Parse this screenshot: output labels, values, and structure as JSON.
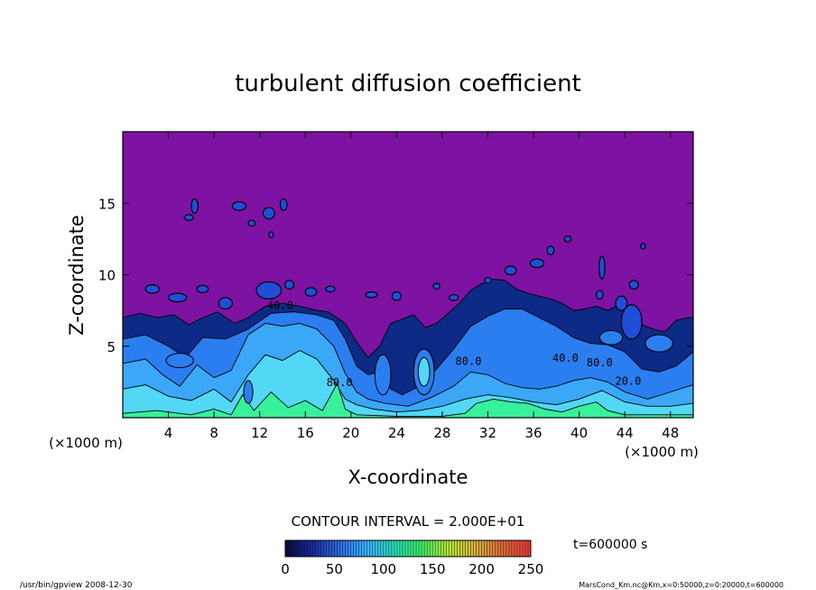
{
  "chart_data": {
    "type": "heatmap",
    "title": "turbulent diffusion coefficient",
    "xlabel": "X-coordinate",
    "ylabel": "Z-coordinate",
    "x_unit": "(×1000 m)",
    "y_unit": "(×1000 m)",
    "xlim": [
      0,
      50
    ],
    "ylim": [
      0,
      20
    ],
    "x_ticks": [
      4,
      8,
      12,
      16,
      20,
      24,
      28,
      32,
      36,
      40,
      44,
      48
    ],
    "y_ticks": [
      5,
      10,
      15
    ],
    "contour_interval": "CONTOUR INTERVAL = 2.000E+01",
    "time_label": "t=600000 s",
    "contour_labels": [
      {
        "x": 13.8,
        "z": 7.6,
        "text": "40.0"
      },
      {
        "x": 19.0,
        "z": 2.2,
        "text": "80.0"
      },
      {
        "x": 30.3,
        "z": 3.7,
        "text": "80.0"
      },
      {
        "x": 38.8,
        "z": 3.9,
        "text": "40.0"
      },
      {
        "x": 41.8,
        "z": 3.6,
        "text": "80.0"
      },
      {
        "x": 44.3,
        "z": 2.3,
        "text": "20.0"
      }
    ],
    "colorbar": {
      "min": 0,
      "max": 250,
      "ticks": [
        "0",
        "50",
        "100",
        "150",
        "200",
        "250"
      ],
      "colors": [
        "#0a0a3c",
        "#1e2aa0",
        "#2f6ee6",
        "#3ab4ff",
        "#2adfb8",
        "#3ff06a",
        "#b8e83a",
        "#d8b040",
        "#e06a3a",
        "#ee3a3a"
      ]
    },
    "background_color": "#7e12a2",
    "fill_colors": {
      "navy": "#0d2a86",
      "blue": "#1f4ed8",
      "mid": "#2a7ef0",
      "light": "#3aa8f6",
      "cyan": "#52d8f4",
      "green": "#36f09a"
    },
    "field_regions": [
      {
        "level": "navy",
        "x": [
          0.0,
          1.5,
          3.0,
          4.5,
          5.8,
          7.0,
          8.3,
          9.8,
          11.0,
          12.5,
          14.0,
          15.5,
          17.0,
          18.0,
          19.5,
          20.5,
          21.5,
          22.5,
          23.5,
          24.5,
          25.5,
          26.5,
          27.5,
          28.5,
          29.5,
          30.5,
          31.5,
          32.5,
          33.5,
          34.5,
          35.5,
          36.5,
          37.5,
          38.5,
          39.5,
          40.5,
          41.5,
          42.5,
          43.5,
          44.5,
          45.5,
          46.5,
          47.5,
          48.5,
          49.5,
          50.0
        ],
        "top": [
          7.0,
          7.3,
          7.0,
          7.2,
          6.5,
          7.0,
          7.4,
          6.6,
          7.0,
          7.8,
          8.0,
          7.8,
          7.5,
          7.4,
          6.6,
          5.3,
          4.2,
          5.0,
          6.6,
          6.9,
          7.2,
          6.3,
          6.6,
          7.3,
          8.0,
          8.9,
          9.4,
          9.7,
          9.6,
          9.0,
          8.7,
          8.5,
          8.3,
          8.0,
          7.5,
          7.6,
          7.8,
          7.5,
          7.9,
          7.5,
          6.5,
          6.2,
          6.0,
          6.8,
          7.0,
          7.0
        ]
      },
      {
        "level": "mid",
        "x": [
          0.0,
          2.0,
          4.0,
          5.5,
          7.0,
          9.0,
          11.0,
          13.0,
          15.0,
          17.0,
          18.5,
          19.5,
          20.5,
          21.5,
          22.5,
          23.5,
          24.5,
          26.0,
          27.5,
          29.0,
          30.5,
          32.0,
          33.5,
          35.0,
          36.5,
          38.0,
          39.5,
          41.0,
          42.5,
          44.0,
          45.5,
          47.0,
          48.5,
          50.0
        ],
        "top": [
          5.5,
          5.8,
          5.0,
          4.2,
          5.6,
          5.5,
          6.2,
          7.3,
          7.4,
          7.2,
          6.8,
          5.5,
          3.6,
          3.0,
          3.2,
          2.0,
          1.6,
          2.2,
          3.4,
          4.8,
          6.4,
          7.1,
          7.6,
          7.6,
          7.0,
          6.4,
          5.6,
          5.2,
          5.1,
          4.6,
          3.4,
          3.2,
          3.6,
          4.6
        ]
      },
      {
        "level": "light",
        "x": [
          0.0,
          2.0,
          3.5,
          5.0,
          6.5,
          8.0,
          9.5,
          11.0,
          12.5,
          14.0,
          15.5,
          17.0,
          18.5,
          19.5,
          20.5,
          21.5,
          23.0,
          25.0,
          27.0,
          29.0,
          30.5,
          32.0,
          33.5,
          35.0,
          36.5,
          38.0,
          39.5,
          41.0,
          42.5,
          44.0,
          46.0,
          48.0,
          50.0
        ],
        "top": [
          3.8,
          4.1,
          3.0,
          2.2,
          3.7,
          2.8,
          3.3,
          5.8,
          6.6,
          6.4,
          6.6,
          6.2,
          5.0,
          3.1,
          1.8,
          1.3,
          1.0,
          0.8,
          1.4,
          2.2,
          3.2,
          3.0,
          2.4,
          2.1,
          2.0,
          2.2,
          2.6,
          2.8,
          2.5,
          1.8,
          1.3,
          1.8,
          2.3
        ]
      },
      {
        "level": "cyan",
        "x": [
          0.0,
          2.0,
          4.0,
          6.0,
          8.0,
          9.5,
          11.0,
          12.5,
          14.0,
          15.5,
          17.0,
          18.5,
          19.5,
          20.5,
          22.0,
          24.0,
          26.0,
          28.0,
          30.0,
          32.0,
          34.0,
          36.0,
          38.0,
          40.0,
          42.0,
          44.0,
          46.0,
          48.0,
          50.0
        ],
        "top": [
          2.0,
          2.3,
          1.5,
          1.2,
          2.0,
          1.1,
          3.0,
          4.4,
          4.0,
          4.7,
          4.1,
          2.6,
          1.3,
          0.9,
          0.6,
          0.4,
          0.5,
          0.8,
          1.3,
          1.6,
          1.4,
          1.1,
          0.9,
          1.3,
          1.9,
          1.1,
          0.8,
          0.8,
          1.0
        ]
      },
      {
        "level": "green",
        "x": [
          0.0,
          3.0,
          6.0,
          8.0,
          9.5,
          10.5,
          11.5,
          13.0,
          14.5,
          16.0,
          17.5,
          18.8,
          19.5,
          20.5,
          24.0,
          28.0,
          30.0,
          31.0,
          32.5,
          34.0,
          35.5,
          37.0,
          38.5,
          40.0,
          41.5,
          42.5,
          44.0,
          47.0,
          50.0
        ],
        "top": [
          0.3,
          0.5,
          0.2,
          0.6,
          0.2,
          1.6,
          0.5,
          1.8,
          0.7,
          1.2,
          0.5,
          2.4,
          0.6,
          0.2,
          0.1,
          0.1,
          0.3,
          1.0,
          1.3,
          1.1,
          1.0,
          0.6,
          0.4,
          0.8,
          1.1,
          0.5,
          0.2,
          0.2,
          0.2
        ]
      }
    ],
    "eddies": [
      {
        "x": 26.4,
        "z": 3.2,
        "rx": 0.9,
        "rz": 1.6
      },
      {
        "x": 26.4,
        "z": 3.2,
        "rx": 0.5,
        "rz": 1.0
      },
      {
        "x": 5.0,
        "z": 4.0,
        "rx": 1.2,
        "rz": 0.5
      },
      {
        "x": 47.0,
        "z": 5.2,
        "rx": 1.2,
        "rz": 0.6
      },
      {
        "x": 42.8,
        "z": 5.6,
        "rx": 1.0,
        "rz": 0.5
      },
      {
        "x": 11.0,
        "z": 1.8,
        "rx": 0.4,
        "rz": 0.8
      },
      {
        "x": 22.8,
        "z": 3.0,
        "rx": 0.7,
        "rz": 1.4
      }
    ],
    "patches": [
      {
        "x": 6.3,
        "z": 14.8,
        "rx": 0.3,
        "rz": 0.5
      },
      {
        "x": 5.8,
        "z": 14.0,
        "rx": 0.4,
        "rz": 0.2
      },
      {
        "x": 10.2,
        "z": 14.8,
        "rx": 0.6,
        "rz": 0.3
      },
      {
        "x": 12.8,
        "z": 14.3,
        "rx": 0.5,
        "rz": 0.4
      },
      {
        "x": 14.1,
        "z": 14.9,
        "rx": 0.3,
        "rz": 0.4
      },
      {
        "x": 11.3,
        "z": 13.6,
        "rx": 0.3,
        "rz": 0.2
      },
      {
        "x": 13.0,
        "z": 12.8,
        "rx": 0.2,
        "rz": 0.2
      },
      {
        "x": 2.6,
        "z": 9.0,
        "rx": 0.6,
        "rz": 0.3
      },
      {
        "x": 4.8,
        "z": 8.4,
        "rx": 0.8,
        "rz": 0.3
      },
      {
        "x": 7.0,
        "z": 9.0,
        "rx": 0.5,
        "rz": 0.25
      },
      {
        "x": 9.0,
        "z": 8.0,
        "rx": 0.6,
        "rz": 0.4
      },
      {
        "x": 12.8,
        "z": 8.9,
        "rx": 1.1,
        "rz": 0.6
      },
      {
        "x": 14.6,
        "z": 9.3,
        "rx": 0.4,
        "rz": 0.3
      },
      {
        "x": 16.5,
        "z": 8.8,
        "rx": 0.5,
        "rz": 0.3
      },
      {
        "x": 18.2,
        "z": 9.0,
        "rx": 0.4,
        "rz": 0.2
      },
      {
        "x": 21.8,
        "z": 8.6,
        "rx": 0.5,
        "rz": 0.2
      },
      {
        "x": 24.0,
        "z": 8.5,
        "rx": 0.4,
        "rz": 0.3
      },
      {
        "x": 27.5,
        "z": 9.2,
        "rx": 0.3,
        "rz": 0.2
      },
      {
        "x": 34.0,
        "z": 10.3,
        "rx": 0.5,
        "rz": 0.3
      },
      {
        "x": 36.3,
        "z": 10.8,
        "rx": 0.6,
        "rz": 0.3
      },
      {
        "x": 37.5,
        "z": 11.7,
        "rx": 0.3,
        "rz": 0.3
      },
      {
        "x": 39.0,
        "z": 12.5,
        "rx": 0.3,
        "rz": 0.2
      },
      {
        "x": 42.0,
        "z": 10.5,
        "rx": 0.25,
        "rz": 0.8
      },
      {
        "x": 44.8,
        "z": 9.3,
        "rx": 0.4,
        "rz": 0.3
      },
      {
        "x": 43.7,
        "z": 8.0,
        "rx": 0.5,
        "rz": 0.5
      },
      {
        "x": 44.6,
        "z": 6.7,
        "rx": 0.9,
        "rz": 1.2
      },
      {
        "x": 41.8,
        "z": 8.6,
        "rx": 0.3,
        "rz": 0.3
      },
      {
        "x": 29.0,
        "z": 8.4,
        "rx": 0.4,
        "rz": 0.2
      },
      {
        "x": 32.0,
        "z": 9.6,
        "rx": 0.3,
        "rz": 0.2
      },
      {
        "x": 45.6,
        "z": 12.0,
        "rx": 0.2,
        "rz": 0.2
      }
    ]
  },
  "footer": {
    "left": "/usr/bin/gpview  2008-12-30",
    "right": "MarsCond_Km.nc@Km,x=0:50000,z=0:20000,t=600000"
  }
}
